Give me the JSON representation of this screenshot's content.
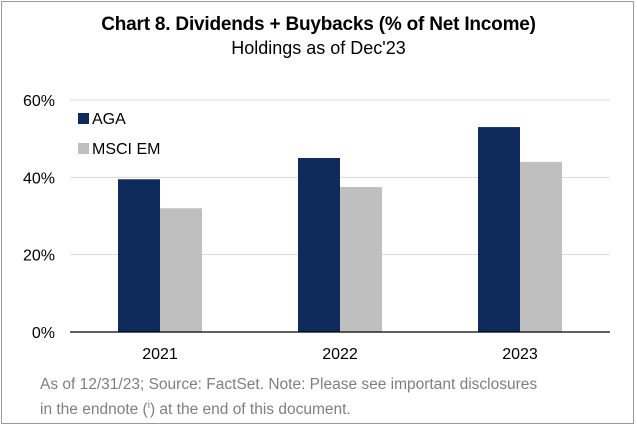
{
  "chart_data": {
    "type": "bar",
    "title": "Chart 8. Dividends + Buybacks (% of Net Income)",
    "subtitle": "Holdings as of Dec'23",
    "categories": [
      "2021",
      "2022",
      "2023"
    ],
    "series": [
      {
        "name": "AGA",
        "values": [
          39.5,
          45,
          53
        ],
        "color": "#0f2b5b"
      },
      {
        "name": "MSCI EM",
        "values": [
          32,
          37.5,
          44
        ],
        "color": "#bfbfbf"
      }
    ],
    "ylim": [
      0,
      60
    ],
    "yticks": [
      "0%",
      "20%",
      "40%",
      "60%"
    ],
    "ytick_values": [
      0,
      20,
      40,
      60
    ],
    "grid": true,
    "legend_position": "top-left",
    "xlabel": "",
    "ylabel": ""
  },
  "footnote": {
    "line1": "As of 12/31/23; Source: FactSet. Note: Please see important disclosures",
    "line2_before": "in the endnote (",
    "line2_sup": "i",
    "line2_after": ") at the end of this document."
  }
}
